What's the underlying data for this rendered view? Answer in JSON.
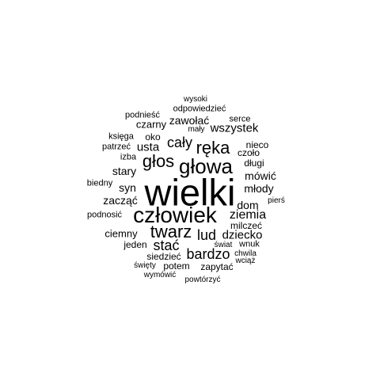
{
  "cloud": {
    "color": "#000000",
    "words": [
      {
        "text": "wielki"
      },
      {
        "text": "człowiek"
      },
      {
        "text": "głowa"
      },
      {
        "text": "głos"
      },
      {
        "text": "ręka"
      },
      {
        "text": "twarz"
      },
      {
        "text": "cały"
      },
      {
        "text": "bardzo"
      },
      {
        "text": "ziemia"
      },
      {
        "text": "stać"
      },
      {
        "text": "lud"
      },
      {
        "text": "dziecko"
      },
      {
        "text": "usta"
      },
      {
        "text": "wszystek"
      },
      {
        "text": "zawołać"
      },
      {
        "text": "czarny"
      },
      {
        "text": "dom"
      },
      {
        "text": "mówić"
      },
      {
        "text": "młody"
      },
      {
        "text": "stary"
      },
      {
        "text": "syn"
      },
      {
        "text": "zacząć"
      },
      {
        "text": "ciemny"
      },
      {
        "text": "jeden"
      },
      {
        "text": "siedzieć"
      },
      {
        "text": "potem"
      },
      {
        "text": "zapytać"
      },
      {
        "text": "milczeć"
      },
      {
        "text": "oko"
      },
      {
        "text": "długi"
      },
      {
        "text": "czoło"
      },
      {
        "text": "nieco"
      },
      {
        "text": "wysoki"
      },
      {
        "text": "odpowiedzieć"
      },
      {
        "text": "podnieść"
      },
      {
        "text": "serce"
      },
      {
        "text": "mały"
      },
      {
        "text": "księga"
      },
      {
        "text": "patrzeć"
      },
      {
        "text": "izba"
      },
      {
        "text": "biedny"
      },
      {
        "text": "podnosić"
      },
      {
        "text": "pierś"
      },
      {
        "text": "wnuk"
      },
      {
        "text": "świat"
      },
      {
        "text": "chwila"
      },
      {
        "text": "wciąż"
      },
      {
        "text": "święty"
      },
      {
        "text": "wymówić"
      },
      {
        "text": "powtórzyć"
      }
    ]
  }
}
